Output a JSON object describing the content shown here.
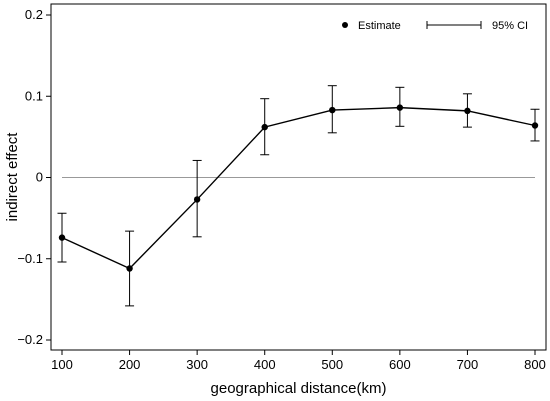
{
  "chart_data": {
    "type": "line",
    "xlabel": "geographical distance(km)",
    "ylabel": "indirect effect",
    "xlim": [
      100,
      800
    ],
    "ylim": [
      -0.2,
      0.2
    ],
    "xticks": [
      100,
      200,
      300,
      400,
      500,
      600,
      700,
      800
    ],
    "xtick_labels": [
      "100",
      "200",
      "300",
      "400",
      "500",
      "600",
      "700",
      "800"
    ],
    "yticks": [
      -0.2,
      -0.1,
      0,
      0.1,
      0.2
    ],
    "ytick_labels": [
      "−0.2",
      "−0.1",
      "0",
      "0.1",
      "0.2"
    ],
    "reference_line": 0,
    "grid": false,
    "legend_position": "top-right",
    "legend": {
      "estimate_label": "Estimate",
      "ci_label": "95% CI"
    },
    "series": [
      {
        "name": "Estimate",
        "x": [
          100,
          200,
          300,
          400,
          500,
          600,
          700,
          800
        ],
        "y": [
          -0.074,
          -0.112,
          -0.027,
          0.062,
          0.083,
          0.086,
          0.082,
          0.064
        ],
        "ci_low": [
          -0.104,
          -0.158,
          -0.073,
          0.028,
          0.055,
          0.063,
          0.062,
          0.045
        ],
        "ci_high": [
          -0.044,
          -0.066,
          0.021,
          0.097,
          0.113,
          0.111,
          0.103,
          0.084
        ]
      }
    ],
    "colors": {
      "line": "#000000",
      "zero_line": "#999999",
      "axis": "#000000"
    }
  }
}
